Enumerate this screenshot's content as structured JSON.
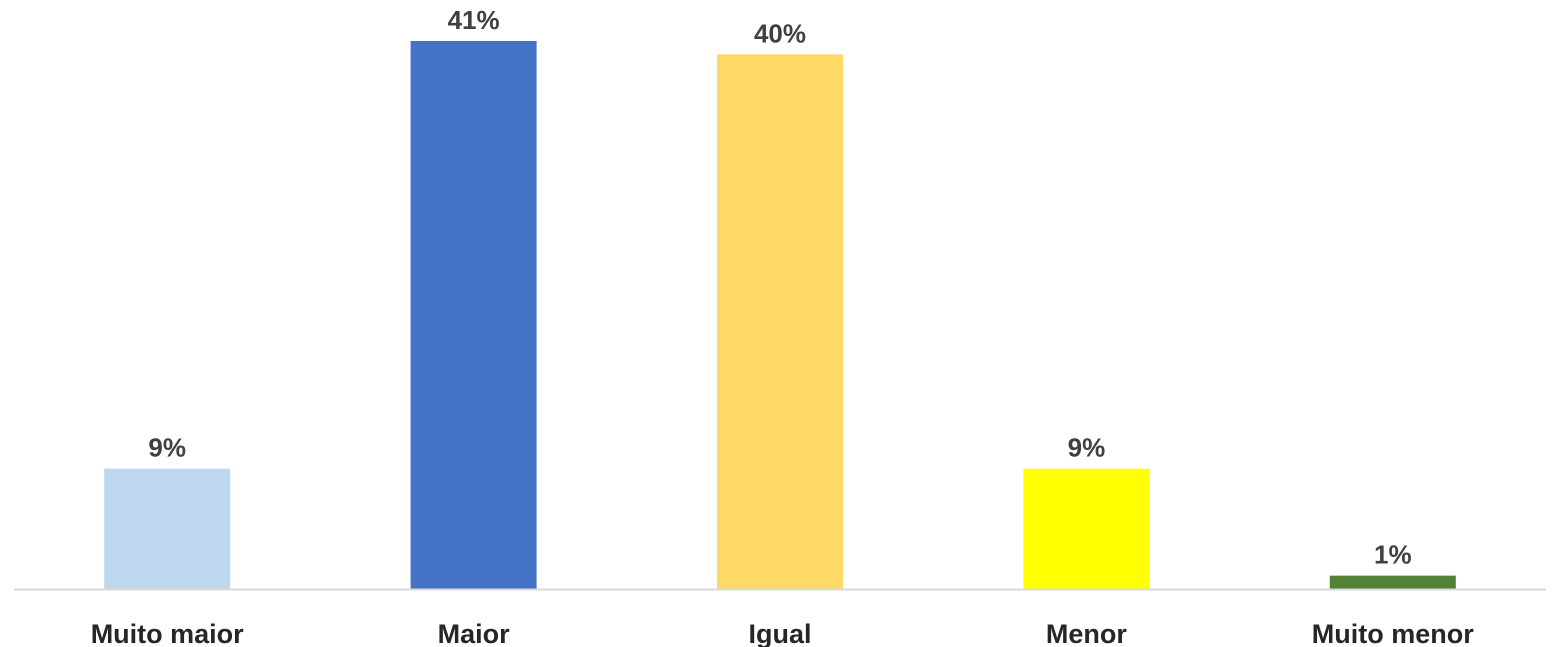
{
  "chart_data": {
    "type": "bar",
    "title": "",
    "xlabel": "",
    "ylabel": "",
    "ylim": [
      0,
      41
    ],
    "grid": false,
    "legend": "none",
    "categories": [
      "Muito maior",
      "Maior",
      "Igual",
      "Menor",
      "Muito menor"
    ],
    "values": [
      9,
      41,
      40,
      9,
      1
    ],
    "value_labels": [
      "9%",
      "41%",
      "40%",
      "9%",
      "1%"
    ],
    "colors": [
      "#bdd7ee",
      "#4472c4",
      "#ffd966",
      "#ffff00",
      "#548235"
    ],
    "baseline_color": "#d9d9d9"
  }
}
